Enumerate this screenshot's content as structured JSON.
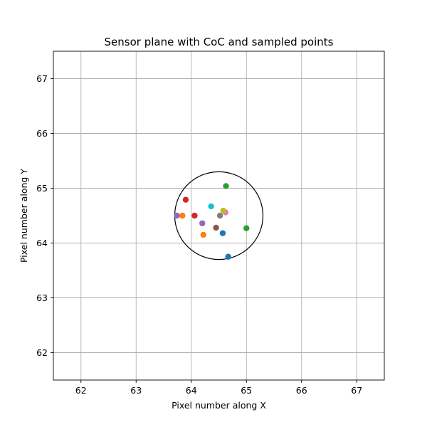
{
  "chart_data": {
    "type": "scatter",
    "title": "Sensor plane with CoC and sampled points",
    "xlabel": "Pixel number along X",
    "ylabel": "Pixel number along Y",
    "xlim": [
      61.5,
      67.5
    ],
    "ylim": [
      61.5,
      67.5
    ],
    "xticks": [
      "62",
      "63",
      "64",
      "65",
      "66",
      "67"
    ],
    "yticks": [
      "62",
      "63",
      "64",
      "65",
      "66",
      "67"
    ],
    "grid": true,
    "circle": {
      "cx": 64.5,
      "cy": 64.5,
      "r": 0.8,
      "color": "#000000"
    },
    "points": [
      {
        "x": 64.67,
        "y": 63.75,
        "color": "#1f77b4"
      },
      {
        "x": 64.22,
        "y": 64.15,
        "color": "#ff7f0e"
      },
      {
        "x": 65.0,
        "y": 64.27,
        "color": "#2ca02c"
      },
      {
        "x": 64.06,
        "y": 64.5,
        "color": "#d62728"
      },
      {
        "x": 64.2,
        "y": 64.36,
        "color": "#9467bd"
      },
      {
        "x": 64.45,
        "y": 64.28,
        "color": "#8c564b"
      },
      {
        "x": 64.62,
        "y": 64.56,
        "color": "#e377c2"
      },
      {
        "x": 64.52,
        "y": 64.5,
        "color": "#7f7f7f"
      },
      {
        "x": 64.58,
        "y": 64.59,
        "color": "#bcbd22"
      },
      {
        "x": 64.36,
        "y": 64.67,
        "color": "#17becf"
      },
      {
        "x": 64.57,
        "y": 64.18,
        "color": "#1f77b4"
      },
      {
        "x": 63.84,
        "y": 64.5,
        "color": "#ff7f0e"
      },
      {
        "x": 64.63,
        "y": 65.04,
        "color": "#2ca02c"
      },
      {
        "x": 63.9,
        "y": 64.79,
        "color": "#d62728"
      },
      {
        "x": 63.74,
        "y": 64.5,
        "color": "#9467bd"
      }
    ]
  }
}
